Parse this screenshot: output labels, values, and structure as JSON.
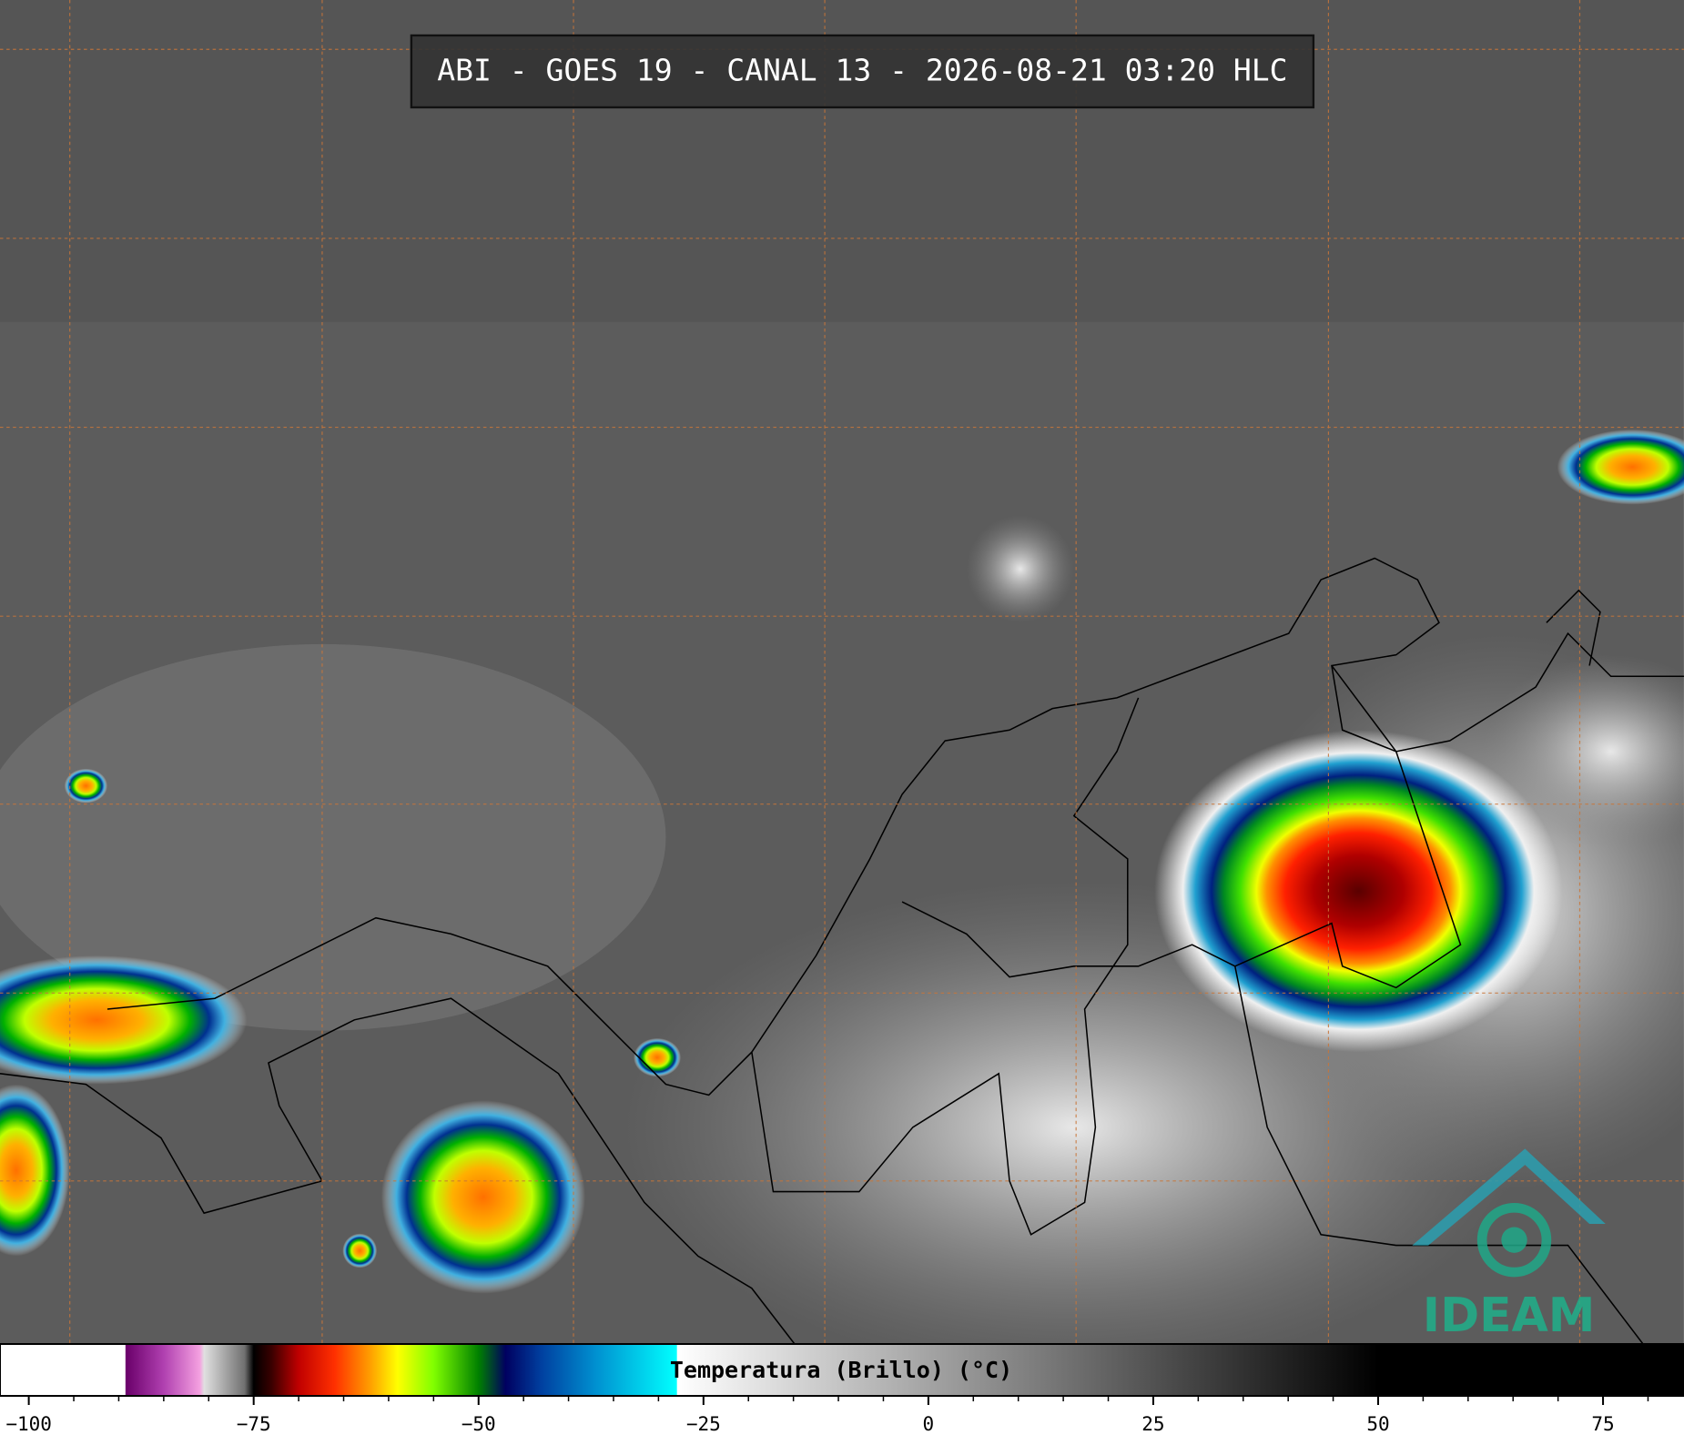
{
  "header": {
    "title": "ABI - GOES 19 - CANAL 13 - 2026-08-21 03:20 HLC"
  },
  "colorbar": {
    "label": "Temperatura (Brillo) (°C)",
    "lim": [
      -103.2,
      84
    ],
    "ticks": [
      {
        "value": -100,
        "label": "−100"
      },
      {
        "value": -75,
        "label": "−75"
      },
      {
        "value": -50,
        "label": "−50"
      },
      {
        "value": -25,
        "label": "−25"
      },
      0,
      25,
      50,
      75
    ],
    "stops": [
      [
        -103.2,
        "#ffffff"
      ],
      [
        -89.3,
        "#ffffff"
      ],
      [
        -89.2,
        "#6a006a"
      ],
      [
        -85,
        "#b040b0"
      ],
      [
        -81,
        "#f4a0e0"
      ],
      [
        -80.5,
        "#e0e0e0"
      ],
      [
        -76,
        "#707070"
      ],
      [
        -75,
        "#000000"
      ],
      [
        -73,
        "#3a0000"
      ],
      [
        -70,
        "#c00000"
      ],
      [
        -66,
        "#ff3000"
      ],
      [
        -62,
        "#ffa000"
      ],
      [
        -59,
        "#ffff00"
      ],
      [
        -55,
        "#80ff00"
      ],
      [
        -50,
        "#008000"
      ],
      [
        -47,
        "#000060"
      ],
      [
        -43,
        "#0040a0"
      ],
      [
        -37,
        "#0090d0"
      ],
      [
        -28,
        "#00ffff"
      ],
      [
        -27.9,
        "#ffffff"
      ],
      [
        50,
        "#000000"
      ],
      [
        84,
        "#000000"
      ]
    ]
  },
  "logo": {
    "text": "IDEAM"
  }
}
